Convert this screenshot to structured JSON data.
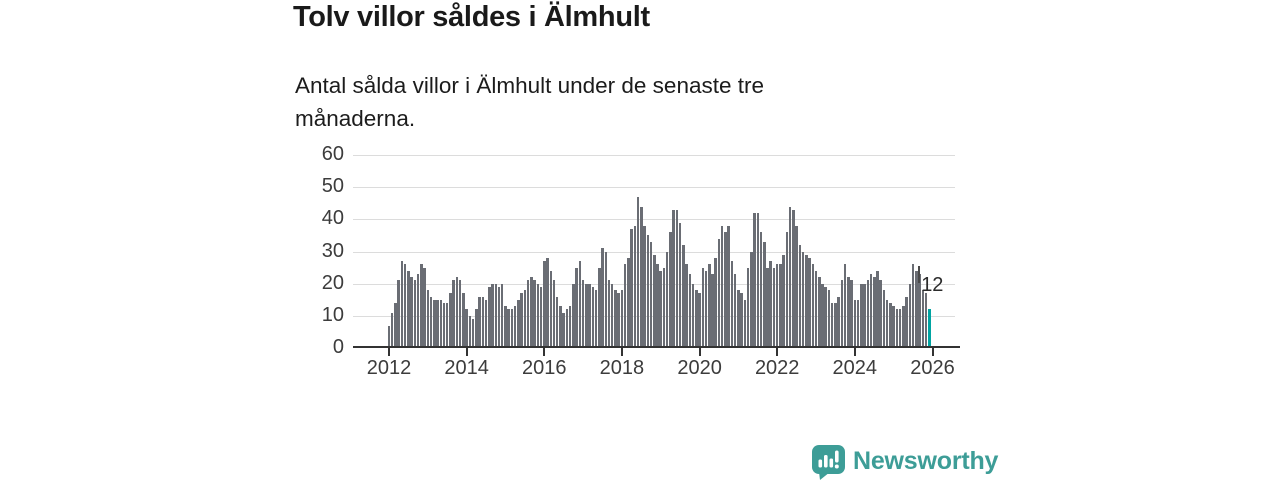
{
  "header": {
    "title": "Tolv villor såldes i Älmhult",
    "subtitle_line1": "Antal sålda villor i Älmhult under de senaste tre",
    "subtitle_line2": "månaderna."
  },
  "chart_data": {
    "type": "bar",
    "title": "Tolv villor såldes i Älmhult",
    "subtitle": "Antal sålda villor i Älmhult under de senaste tre månaderna.",
    "x_start": "2012-01",
    "x_frequency": "monthly",
    "xlabel": "",
    "ylabel": "",
    "ylim": [
      0,
      60
    ],
    "grid": true,
    "yticks": [
      0,
      10,
      20,
      30,
      40,
      50,
      60
    ],
    "xticks": [
      "2012",
      "2014",
      "2016",
      "2018",
      "2020",
      "2022",
      "2024",
      "2026"
    ],
    "annotation": {
      "label": "12",
      "target": "last-bar"
    },
    "highlight_index": 167,
    "colors": {
      "bar": "#6a6d74",
      "highlight": "#00a4a2",
      "grid": "#dcdcdc",
      "axis": "#333333",
      "tick_text": "#3c3c3c"
    },
    "values": [
      7,
      11,
      14,
      21,
      27,
      26,
      24,
      22,
      21,
      23,
      26,
      25,
      18,
      16,
      15,
      15,
      15,
      14,
      14,
      17,
      21,
      22,
      21,
      17,
      12,
      10,
      9,
      12,
      16,
      16,
      15,
      19,
      20,
      20,
      19,
      20,
      13,
      12,
      12,
      13,
      15,
      17,
      18,
      21,
      22,
      21,
      20,
      19,
      27,
      28,
      24,
      21,
      16,
      13,
      11,
      12,
      13,
      20,
      25,
      27,
      21,
      20,
      20,
      19,
      18,
      25,
      31,
      30,
      21,
      20,
      18,
      17,
      18,
      26,
      28,
      37,
      38,
      47,
      44,
      38,
      35,
      33,
      29,
      26,
      24,
      25,
      30,
      36,
      43,
      43,
      39,
      32,
      26,
      23,
      20,
      18,
      17,
      25,
      24,
      26,
      23,
      28,
      34,
      38,
      36,
      38,
      27,
      23,
      18,
      17,
      15,
      25,
      30,
      42,
      42,
      36,
      33,
      25,
      27,
      25,
      26,
      26,
      29,
      36,
      44,
      43,
      38,
      32,
      30,
      29,
      28,
      26,
      24,
      22,
      20,
      19,
      18,
      14,
      14,
      16,
      21,
      26,
      22,
      21,
      15,
      15,
      20,
      20,
      21,
      23,
      22,
      24,
      21,
      18,
      15,
      14,
      13,
      12,
      12,
      13,
      16,
      20,
      26,
      24,
      23,
      18,
      17,
      12
    ]
  },
  "footer": {
    "brand": "Newsworthy",
    "brand_color": "#3d9d97",
    "logo_icon": "speech-bubble-bar-chart"
  }
}
